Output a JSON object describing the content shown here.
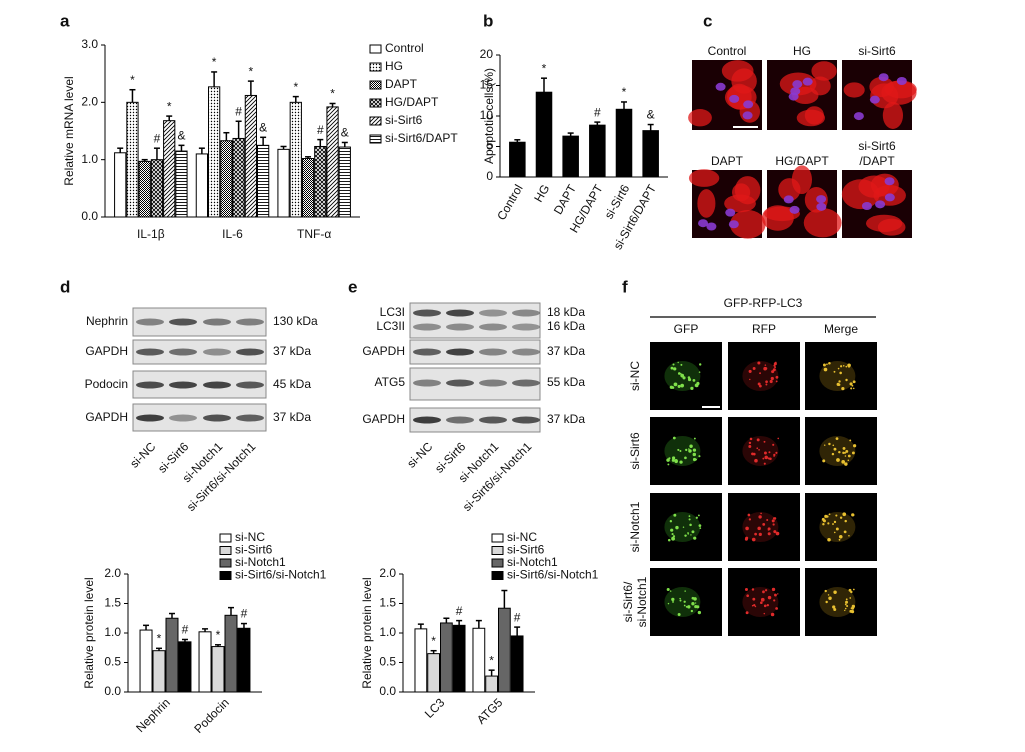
{
  "panel_labels": [
    "a",
    "b",
    "c",
    "d",
    "e",
    "f"
  ],
  "chart_data": [
    {
      "type": "bar",
      "ylabel": "Relative mRNA level",
      "categories": [
        "IL-1β",
        "IL-6",
        "TNF-α"
      ],
      "ylim": [
        0,
        3
      ],
      "yticks": [
        {
          "value": 0,
          "label": "0.0"
        },
        {
          "value": 1,
          "label": "1.0"
        },
        {
          "value": 2,
          "label": "2.0"
        },
        {
          "value": 3,
          "label": "3.0"
        }
      ],
      "series": [
        {
          "name": "Control",
          "color": "#ffffff",
          "pattern": "none",
          "values": [
            1.12,
            1.1,
            1.18
          ],
          "errors": [
            0.08,
            0.1,
            0.05
          ]
        },
        {
          "name": "HG",
          "color": "#ffffff",
          "pattern": "dots",
          "values": [
            2.0,
            2.27,
            2.0
          ],
          "errors": [
            0.22,
            0.26,
            0.1
          ],
          "significance": [
            "*",
            "*",
            "*"
          ]
        },
        {
          "name": "DAPT",
          "color": "#ffffff",
          "pattern": "dense",
          "values": [
            0.97,
            1.33,
            1.02
          ],
          "errors": [
            0.03,
            0.14,
            0.03
          ]
        },
        {
          "name": "HG/DAPT",
          "color": "#ffffff",
          "pattern": "cross",
          "values": [
            1.0,
            1.37,
            1.23
          ],
          "errors": [
            0.2,
            0.3,
            0.12
          ],
          "significance": [
            "#",
            "#",
            "#"
          ]
        },
        {
          "name": "si-Sirt6",
          "color": "#ffffff",
          "pattern": "diag",
          "values": [
            1.68,
            2.12,
            1.92
          ],
          "errors": [
            0.08,
            0.25,
            0.06
          ],
          "significance": [
            "*",
            "*",
            "*"
          ]
        },
        {
          "name": "si-Sirt6/DAPT",
          "color": "#ffffff",
          "pattern": "horiz",
          "values": [
            1.15,
            1.25,
            1.22
          ],
          "errors": [
            0.1,
            0.14,
            0.08
          ],
          "significance": [
            "&",
            "&",
            "&"
          ]
        }
      ]
    },
    {
      "type": "bar",
      "ylabel": "Apoptotic cells(%)",
      "categories": [
        "Control",
        "HG",
        "DAPT",
        "HG/DAPT",
        "si-Sirt6",
        "si-Sirt6/DAPT"
      ],
      "values": [
        5.7,
        13.9,
        6.7,
        8.5,
        11.1,
        7.6
      ],
      "errors": [
        0.4,
        2.3,
        0.5,
        0.5,
        1.2,
        1.0
      ],
      "significance": [
        null,
        "*",
        null,
        "#",
        "*",
        "&"
      ],
      "color": "#000000",
      "ylim": [
        0,
        20
      ],
      "yticks": [
        0,
        5,
        10,
        15,
        20
      ]
    },
    {
      "type": "bar",
      "ylabel": "Relative protein level",
      "categories": [
        "Nephrin",
        "Podocin"
      ],
      "ylim": [
        0,
        2
      ],
      "yticks": [
        {
          "value": 0,
          "label": "0.0"
        },
        {
          "value": 0.5,
          "label": "0.5"
        },
        {
          "value": 1,
          "label": "1.0"
        },
        {
          "value": 1.5,
          "label": "1.5"
        },
        {
          "value": 2,
          "label": "2.0"
        }
      ],
      "series": [
        {
          "name": "si-NC",
          "color": "#ffffff",
          "values": [
            1.05,
            1.02
          ],
          "errors": [
            0.08,
            0.05
          ]
        },
        {
          "name": "si-Sirt6",
          "color": "#d9d9d9",
          "values": [
            0.7,
            0.77
          ],
          "errors": [
            0.04,
            0.03
          ],
          "significance": [
            "*",
            "*"
          ]
        },
        {
          "name": "si-Notch1",
          "color": "#666666",
          "values": [
            1.25,
            1.3
          ],
          "errors": [
            0.08,
            0.13
          ]
        },
        {
          "name": "si-Sirt6/si-Notch1",
          "color": "#000000",
          "values": [
            0.85,
            1.08
          ],
          "errors": [
            0.04,
            0.08
          ],
          "significance": [
            "#",
            "#"
          ]
        }
      ]
    },
    {
      "type": "bar",
      "ylabel": "Relative protein level",
      "categories": [
        "LC3",
        "ATG5"
      ],
      "ylim": [
        0,
        2
      ],
      "yticks": [
        {
          "value": 0,
          "label": "0.0"
        },
        {
          "value": 0.5,
          "label": "0.5"
        },
        {
          "value": 1,
          "label": "1.0"
        },
        {
          "value": 1.5,
          "label": "1.5"
        },
        {
          "value": 2,
          "label": "2.0"
        }
      ],
      "series": [
        {
          "name": "si-NC",
          "color": "#ffffff",
          "values": [
            1.07,
            1.08
          ],
          "errors": [
            0.08,
            0.13
          ]
        },
        {
          "name": "si-Sirt6",
          "color": "#d9d9d9",
          "values": [
            0.65,
            0.27
          ],
          "errors": [
            0.05,
            0.1
          ],
          "significance": [
            "*",
            "*"
          ]
        },
        {
          "name": "si-Notch1",
          "color": "#666666",
          "values": [
            1.17,
            1.42
          ],
          "errors": [
            0.08,
            0.3
          ]
        },
        {
          "name": "si-Sirt6/si-Notch1",
          "color": "#000000",
          "values": [
            1.13,
            0.95
          ],
          "errors": [
            0.08,
            0.15
          ],
          "significance": [
            "#",
            "#"
          ]
        }
      ]
    }
  ],
  "panel_c": {
    "labels": [
      [
        "Control"
      ],
      [
        "HG"
      ],
      [
        "si-Sirt6"
      ],
      [
        "DAPT"
      ],
      [
        "HG/DAPT"
      ],
      [
        "si-Sirt6",
        "/DAPT"
      ]
    ]
  },
  "panel_d_blot": {
    "rows": [
      {
        "label": "Nephrin",
        "size": "130 kDa"
      },
      {
        "label": "GAPDH",
        "size": "37 kDa"
      },
      {
        "label": "Podocin",
        "size": "45 kDa"
      },
      {
        "label": "GAPDH",
        "size": "37 kDa"
      }
    ],
    "lanes": [
      "si-NC",
      "si-Sirt6",
      "si-Notch1",
      "si-Sirt6/si-Notch1"
    ]
  },
  "panel_e_blot": {
    "rows": [
      {
        "label": "LC3I",
        "size": "18 kDa"
      },
      {
        "label": "LC3II",
        "size": "16 kDa"
      },
      {
        "label": "GAPDH",
        "size": "37 kDa"
      },
      {
        "label": "ATG5",
        "size": "55 kDa"
      },
      {
        "label": "GAPDH",
        "size": "37 kDa"
      }
    ],
    "lanes": [
      "si-NC",
      "si-Sirt6",
      "si-Notch1",
      "si-Sirt6/si-Notch1"
    ]
  },
  "panel_f": {
    "title": "GFP-RFP-LC3",
    "columns": [
      "GFP",
      "RFP",
      "Merge"
    ],
    "rows": [
      [
        "si-NC"
      ],
      [
        "si-Sirt6"
      ],
      [
        "si-Notch1"
      ],
      [
        "si-Sirt6/",
        "si-Notch1"
      ]
    ]
  }
}
